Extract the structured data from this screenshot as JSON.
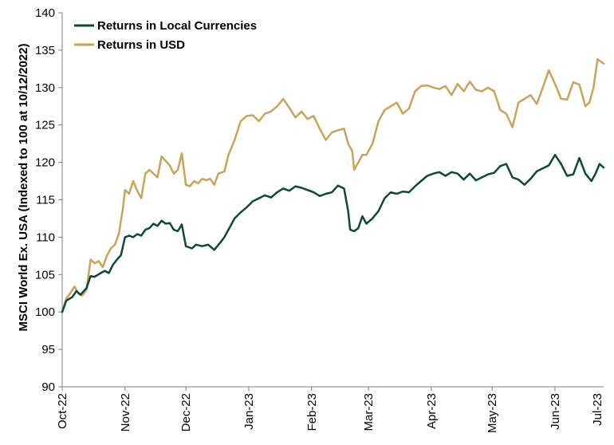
{
  "chart_data": {
    "type": "line",
    "ylabel": "MSCI World Ex. USA (Indexed to 100 at 10/12/2022)",
    "xlabel": "",
    "title": "",
    "ylim": [
      90,
      140
    ],
    "yticks": [
      90,
      95,
      100,
      105,
      110,
      115,
      120,
      125,
      130,
      135,
      140
    ],
    "x_range": [
      "2022-10-12",
      "2023-07-06"
    ],
    "xticks": [
      {
        "date": "2022-10-12",
        "label": "Oct-22"
      },
      {
        "date": "2022-11-12",
        "label": "Nov-22"
      },
      {
        "date": "2022-12-12",
        "label": "Dec-22"
      },
      {
        "date": "2023-01-12",
        "label": "Jan-23"
      },
      {
        "date": "2023-02-12",
        "label": "Feb-23"
      },
      {
        "date": "2023-03-12",
        "label": "Mar-23"
      },
      {
        "date": "2023-04-12",
        "label": "Apr-23"
      },
      {
        "date": "2023-05-12",
        "label": "May-23"
      },
      {
        "date": "2023-06-12",
        "label": "Jun-23"
      },
      {
        "date": "2023-07-12",
        "label": "Jul-23"
      }
    ],
    "grid": false,
    "legend_position": "top-left",
    "series": [
      {
        "name": "Returns in Local Currencies",
        "color": "#0d4a36",
        "points": [
          [
            "2022-10-12",
            100.0
          ],
          [
            "2022-10-14",
            101.5
          ],
          [
            "2022-10-17",
            102.0
          ],
          [
            "2022-10-19",
            102.8
          ],
          [
            "2022-10-21",
            102.3
          ],
          [
            "2022-10-24",
            103.2
          ],
          [
            "2022-10-26",
            104.8
          ],
          [
            "2022-10-28",
            104.7
          ],
          [
            "2022-10-31",
            105.2
          ],
          [
            "2022-11-02",
            105.5
          ],
          [
            "2022-11-04",
            105.2
          ],
          [
            "2022-11-06",
            106.3
          ],
          [
            "2022-11-08",
            107.0
          ],
          [
            "2022-11-10",
            107.6
          ],
          [
            "2022-11-12",
            110.0
          ],
          [
            "2022-11-14",
            110.2
          ],
          [
            "2022-11-16",
            110.0
          ],
          [
            "2022-11-18",
            110.4
          ],
          [
            "2022-11-20",
            110.2
          ],
          [
            "2022-11-22",
            111.0
          ],
          [
            "2022-11-24",
            111.2
          ],
          [
            "2022-11-26",
            111.8
          ],
          [
            "2022-11-28",
            111.5
          ],
          [
            "2022-11-30",
            112.2
          ],
          [
            "2022-12-02",
            111.8
          ],
          [
            "2022-12-04",
            111.9
          ],
          [
            "2022-12-06",
            111.0
          ],
          [
            "2022-12-08",
            110.8
          ],
          [
            "2022-12-10",
            111.7
          ],
          [
            "2022-12-12",
            108.8
          ],
          [
            "2022-12-15",
            108.5
          ],
          [
            "2022-12-17",
            109.0
          ],
          [
            "2022-12-20",
            108.8
          ],
          [
            "2022-12-23",
            109.0
          ],
          [
            "2022-12-26",
            108.3
          ],
          [
            "2022-12-29",
            109.3
          ],
          [
            "2022-12-31",
            110.0
          ],
          [
            "2023-01-02",
            111.0
          ],
          [
            "2023-01-05",
            112.5
          ],
          [
            "2023-01-08",
            113.3
          ],
          [
            "2023-01-11",
            114.0
          ],
          [
            "2023-01-14",
            114.8
          ],
          [
            "2023-01-17",
            115.2
          ],
          [
            "2023-01-20",
            115.6
          ],
          [
            "2023-01-23",
            115.3
          ],
          [
            "2023-01-26",
            116.0
          ],
          [
            "2023-01-29",
            116.5
          ],
          [
            "2023-02-01",
            116.2
          ],
          [
            "2023-02-04",
            116.8
          ],
          [
            "2023-02-07",
            116.6
          ],
          [
            "2023-02-10",
            116.3
          ],
          [
            "2023-02-13",
            116.0
          ],
          [
            "2023-02-16",
            115.5
          ],
          [
            "2023-02-19",
            115.8
          ],
          [
            "2023-02-22",
            116.0
          ],
          [
            "2023-02-25",
            116.9
          ],
          [
            "2023-02-28",
            116.5
          ],
          [
            "2023-03-02",
            113.5
          ],
          [
            "2023-03-03",
            111.0
          ],
          [
            "2023-03-05",
            110.8
          ],
          [
            "2023-03-07",
            111.2
          ],
          [
            "2023-03-09",
            112.8
          ],
          [
            "2023-03-11",
            111.8
          ],
          [
            "2023-03-14",
            112.5
          ],
          [
            "2023-03-17",
            113.5
          ],
          [
            "2023-03-20",
            115.2
          ],
          [
            "2023-03-23",
            116.0
          ],
          [
            "2023-03-26",
            115.8
          ],
          [
            "2023-03-29",
            116.1
          ],
          [
            "2023-04-01",
            116.0
          ],
          [
            "2023-04-04",
            116.8
          ],
          [
            "2023-04-07",
            117.5
          ],
          [
            "2023-04-10",
            118.2
          ],
          [
            "2023-04-13",
            118.5
          ],
          [
            "2023-04-16",
            118.7
          ],
          [
            "2023-04-19",
            118.2
          ],
          [
            "2023-04-22",
            118.7
          ],
          [
            "2023-04-25",
            118.5
          ],
          [
            "2023-04-28",
            117.7
          ],
          [
            "2023-05-01",
            118.5
          ],
          [
            "2023-05-04",
            117.6
          ],
          [
            "2023-05-07",
            118.0
          ],
          [
            "2023-05-10",
            118.4
          ],
          [
            "2023-05-13",
            118.6
          ],
          [
            "2023-05-16",
            119.5
          ],
          [
            "2023-05-19",
            119.8
          ],
          [
            "2023-05-22",
            118.0
          ],
          [
            "2023-05-25",
            117.7
          ],
          [
            "2023-05-28",
            117.0
          ],
          [
            "2023-05-31",
            117.8
          ],
          [
            "2023-06-03",
            118.8
          ],
          [
            "2023-06-06",
            119.2
          ],
          [
            "2023-06-09",
            119.6
          ],
          [
            "2023-06-12",
            121.0
          ],
          [
            "2023-06-15",
            119.8
          ],
          [
            "2023-06-18",
            118.2
          ],
          [
            "2023-06-21",
            118.4
          ],
          [
            "2023-06-24",
            120.6
          ],
          [
            "2023-06-27",
            118.5
          ],
          [
            "2023-06-30",
            117.5
          ],
          [
            "2023-07-02",
            118.5
          ],
          [
            "2023-07-04",
            119.8
          ],
          [
            "2023-07-06",
            119.3
          ]
        ]
      },
      {
        "name": "Returns in USD",
        "color": "#c9a458",
        "points": [
          [
            "2022-10-12",
            100.0
          ],
          [
            "2022-10-14",
            101.8
          ],
          [
            "2022-10-16",
            102.5
          ],
          [
            "2022-10-18",
            103.4
          ],
          [
            "2022-10-20",
            102.5
          ],
          [
            "2022-10-22",
            102.2
          ],
          [
            "2022-10-24",
            103.0
          ],
          [
            "2022-10-26",
            107.0
          ],
          [
            "2022-10-28",
            106.5
          ],
          [
            "2022-10-30",
            106.8
          ],
          [
            "2022-11-01",
            106.0
          ],
          [
            "2022-11-03",
            107.5
          ],
          [
            "2022-11-05",
            108.5
          ],
          [
            "2022-11-07",
            109.0
          ],
          [
            "2022-11-09",
            110.5
          ],
          [
            "2022-11-11",
            114.0
          ],
          [
            "2022-11-12",
            116.3
          ],
          [
            "2022-11-14",
            115.8
          ],
          [
            "2022-11-16",
            117.5
          ],
          [
            "2022-11-18",
            116.2
          ],
          [
            "2022-11-20",
            115.2
          ],
          [
            "2022-11-22",
            118.5
          ],
          [
            "2022-11-24",
            119.0
          ],
          [
            "2022-11-26",
            118.5
          ],
          [
            "2022-11-28",
            118.0
          ],
          [
            "2022-11-30",
            120.8
          ],
          [
            "2022-12-02",
            120.2
          ],
          [
            "2022-12-04",
            119.6
          ],
          [
            "2022-12-06",
            118.5
          ],
          [
            "2022-12-08",
            119.0
          ],
          [
            "2022-12-10",
            121.2
          ],
          [
            "2022-12-12",
            117.0
          ],
          [
            "2022-12-14",
            116.8
          ],
          [
            "2022-12-16",
            117.5
          ],
          [
            "2022-12-18",
            117.2
          ],
          [
            "2022-12-20",
            117.8
          ],
          [
            "2022-12-22",
            117.6
          ],
          [
            "2022-12-24",
            117.8
          ],
          [
            "2022-12-26",
            117.0
          ],
          [
            "2022-12-28",
            118.5
          ],
          [
            "2022-12-31",
            118.8
          ],
          [
            "2023-01-02",
            121.0
          ],
          [
            "2023-01-05",
            123.0
          ],
          [
            "2023-01-08",
            125.5
          ],
          [
            "2023-01-11",
            126.2
          ],
          [
            "2023-01-14",
            126.3
          ],
          [
            "2023-01-17",
            125.5
          ],
          [
            "2023-01-20",
            126.5
          ],
          [
            "2023-01-23",
            126.8
          ],
          [
            "2023-01-26",
            127.5
          ],
          [
            "2023-01-29",
            128.5
          ],
          [
            "2023-02-01",
            127.3
          ],
          [
            "2023-02-04",
            126.0
          ],
          [
            "2023-02-07",
            126.8
          ],
          [
            "2023-02-10",
            125.8
          ],
          [
            "2023-02-13",
            126.2
          ],
          [
            "2023-02-16",
            124.5
          ],
          [
            "2023-02-19",
            123.0
          ],
          [
            "2023-02-22",
            124.0
          ],
          [
            "2023-02-25",
            124.3
          ],
          [
            "2023-02-28",
            124.5
          ],
          [
            "2023-03-02",
            122.5
          ],
          [
            "2023-03-04",
            121.5
          ],
          [
            "2023-03-05",
            119.0
          ],
          [
            "2023-03-07",
            120.0
          ],
          [
            "2023-03-09",
            121.0
          ],
          [
            "2023-03-11",
            121.0
          ],
          [
            "2023-03-14",
            122.5
          ],
          [
            "2023-03-17",
            125.5
          ],
          [
            "2023-03-20",
            127.0
          ],
          [
            "2023-03-23",
            127.5
          ],
          [
            "2023-03-26",
            128.0
          ],
          [
            "2023-03-29",
            126.5
          ],
          [
            "2023-04-01",
            127.2
          ],
          [
            "2023-04-04",
            129.5
          ],
          [
            "2023-04-07",
            130.2
          ],
          [
            "2023-04-10",
            130.3
          ],
          [
            "2023-04-13",
            130.0
          ],
          [
            "2023-04-16",
            129.8
          ],
          [
            "2023-04-19",
            130.2
          ],
          [
            "2023-04-22",
            129.0
          ],
          [
            "2023-04-25",
            130.5
          ],
          [
            "2023-04-28",
            129.5
          ],
          [
            "2023-05-01",
            130.8
          ],
          [
            "2023-05-04",
            129.7
          ],
          [
            "2023-05-07",
            129.5
          ],
          [
            "2023-05-10",
            130.0
          ],
          [
            "2023-05-13",
            129.5
          ],
          [
            "2023-05-16",
            127.0
          ],
          [
            "2023-05-19",
            126.5
          ],
          [
            "2023-05-22",
            124.7
          ],
          [
            "2023-05-25",
            128.0
          ],
          [
            "2023-05-28",
            128.5
          ],
          [
            "2023-05-31",
            129.0
          ],
          [
            "2023-06-03",
            127.8
          ],
          [
            "2023-06-06",
            130.0
          ],
          [
            "2023-06-09",
            132.3
          ],
          [
            "2023-06-12",
            130.5
          ],
          [
            "2023-06-15",
            128.5
          ],
          [
            "2023-06-18",
            128.4
          ],
          [
            "2023-06-21",
            130.7
          ],
          [
            "2023-06-24",
            130.4
          ],
          [
            "2023-06-27",
            127.5
          ],
          [
            "2023-06-29",
            128.0
          ],
          [
            "2023-07-01",
            130.0
          ],
          [
            "2023-07-03",
            133.8
          ],
          [
            "2023-07-06",
            133.2
          ]
        ]
      }
    ]
  }
}
